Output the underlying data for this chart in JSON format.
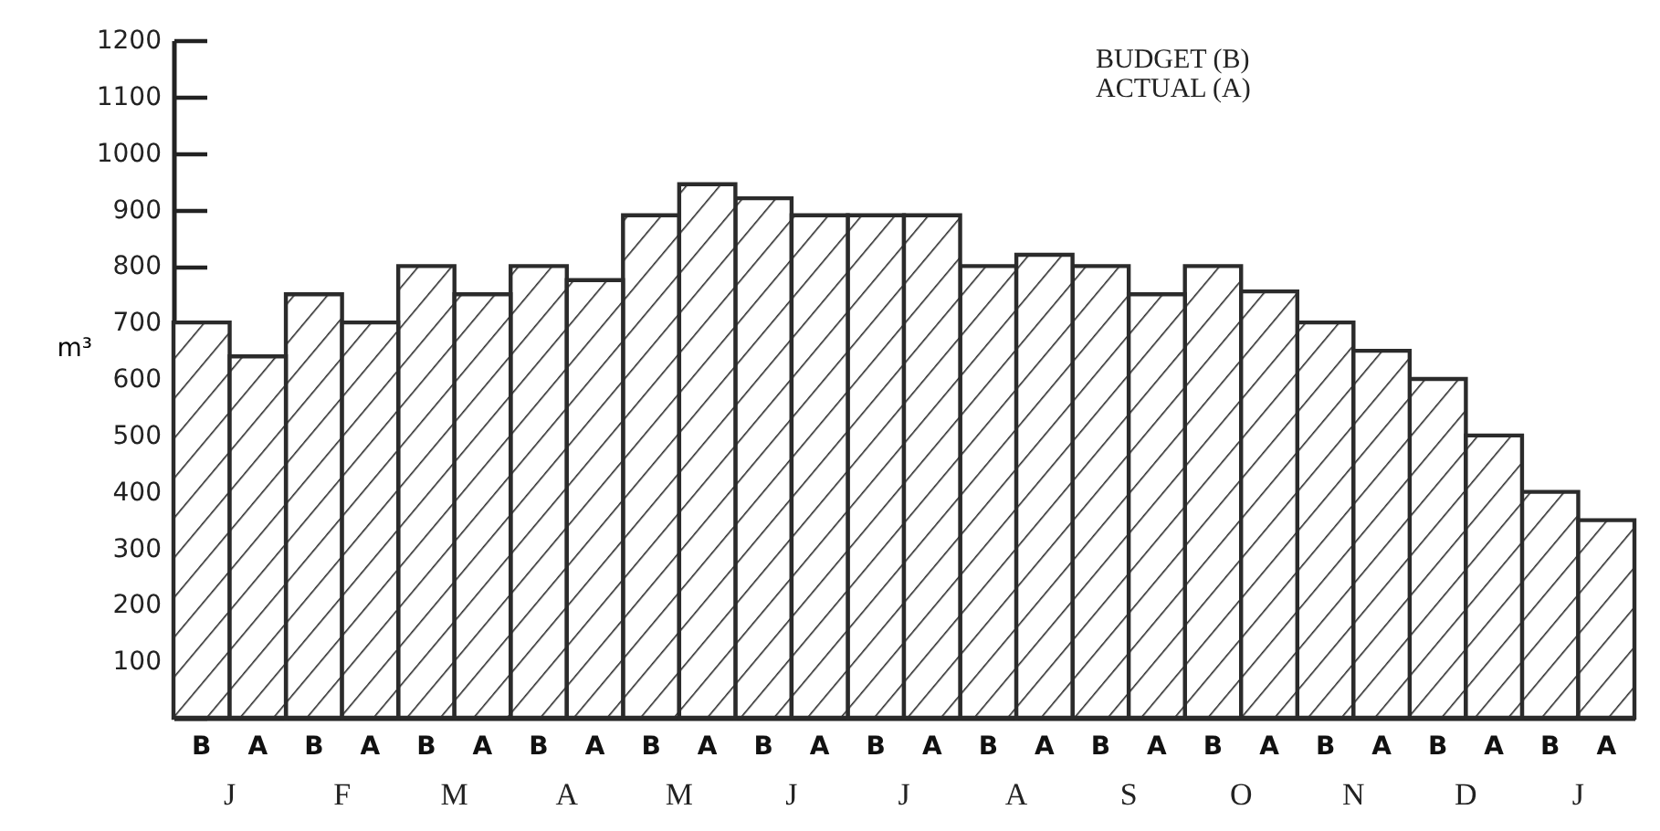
{
  "chart_data": {
    "type": "bar",
    "ylabel": "m³",
    "categories": [
      "J",
      "F",
      "M",
      "A",
      "M",
      "J",
      "J",
      "A",
      "S",
      "O",
      "N",
      "D",
      "J"
    ],
    "series": [
      {
        "name": "B",
        "color": "#2b2b2b",
        "values": [
          700,
          750,
          800,
          800,
          890,
          920,
          890,
          800,
          800,
          800,
          700,
          600,
          400
        ]
      },
      {
        "name": "A",
        "color": "#2b2b2b",
        "values": [
          640,
          700,
          750,
          775,
          945,
          890,
          890,
          820,
          750,
          755,
          650,
          500,
          350
        ]
      }
    ],
    "ylim": [
      0,
      1200
    ],
    "yticks": [
      {
        "value": 0,
        "label": null
      },
      100,
      200,
      300,
      400,
      500,
      600,
      700,
      800,
      900,
      1000,
      1100,
      1200
    ],
    "annotations": [
      "BUDGET (B)",
      "ACTUAL (A)"
    ],
    "grid": false
  }
}
